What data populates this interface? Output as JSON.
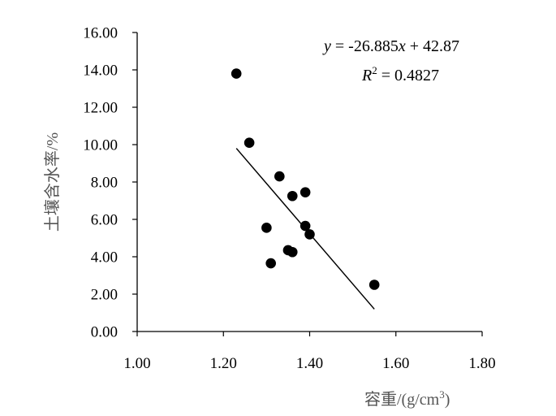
{
  "chart_data": {
    "type": "scatter",
    "xlabel": "容重/(g/cm",
    "xlabel_sup": "3",
    "xlabel_end": ")",
    "ylabel": "土壤含水率/%",
    "xlim": [
      1.0,
      1.8
    ],
    "ylim": [
      0.0,
      16.0
    ],
    "x_ticks": [
      "1.00",
      "1.20",
      "1.40",
      "1.60",
      "1.80"
    ],
    "y_ticks": [
      "0.00",
      "2.00",
      "4.00",
      "6.00",
      "8.00",
      "10.00",
      "12.00",
      "14.00",
      "16.00"
    ],
    "points": [
      {
        "x": 1.23,
        "y": 13.8
      },
      {
        "x": 1.26,
        "y": 10.1
      },
      {
        "x": 1.3,
        "y": 5.55
      },
      {
        "x": 1.31,
        "y": 3.65
      },
      {
        "x": 1.33,
        "y": 8.3
      },
      {
        "x": 1.35,
        "y": 4.35
      },
      {
        "x": 1.36,
        "y": 7.25
      },
      {
        "x": 1.36,
        "y": 4.25
      },
      {
        "x": 1.39,
        "y": 7.45
      },
      {
        "x": 1.39,
        "y": 5.65
      },
      {
        "x": 1.4,
        "y": 5.2
      },
      {
        "x": 1.55,
        "y": 2.5
      }
    ],
    "trendline": {
      "slope": -26.885,
      "intercept": 42.87,
      "x_range": [
        1.23,
        1.55
      ]
    },
    "equation": {
      "y_var": "y",
      "eq_mid": " = -26.885",
      "x_var": "x",
      "eq_end": " + 42.87",
      "r_var": "R",
      "r_sup": "2",
      "r_end": " = 0.4827"
    },
    "grid": false,
    "legend": "none"
  }
}
